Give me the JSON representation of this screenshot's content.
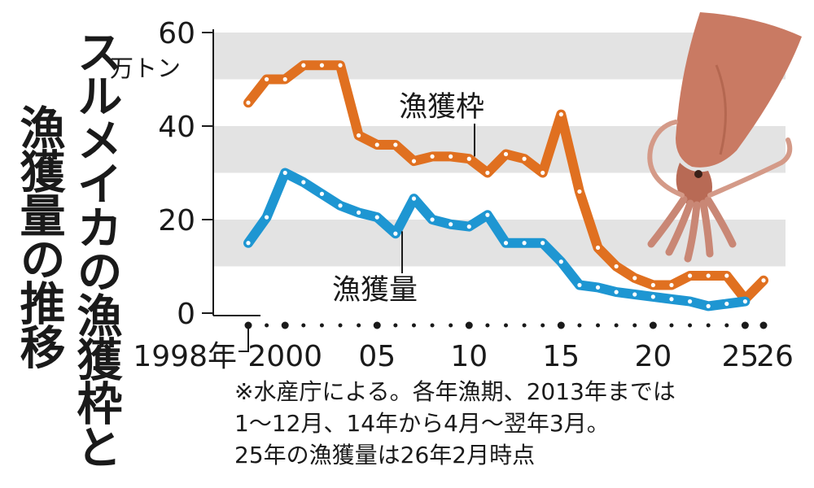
{
  "title": {
    "line1": "スルメイカの漁獲枠と",
    "line2": "漁獲量の推移"
  },
  "chart_data": {
    "type": "line",
    "title": "スルメイカの漁獲枠と漁獲量の推移",
    "ylabel": "万トン",
    "ylim": [
      0,
      60
    ],
    "yticks": [
      {
        "value": 0,
        "label": "0"
      },
      {
        "value": 20,
        "label": "20"
      },
      {
        "value": 40,
        "label": "40"
      },
      {
        "value": 60,
        "label": "60"
      }
    ],
    "xlim": [
      1998,
      2026
    ],
    "xticks": [
      {
        "value": 1998,
        "label": "1998年"
      },
      {
        "value": 2000,
        "label": "2000"
      },
      {
        "value": 2005,
        "label": "05"
      },
      {
        "value": 2010,
        "label": "10"
      },
      {
        "value": 2015,
        "label": "15"
      },
      {
        "value": 2020,
        "label": "20"
      },
      {
        "value": 2025,
        "label": "25"
      },
      {
        "value": 2026,
        "label": "26"
      }
    ],
    "grid_bands": true,
    "series": [
      {
        "name": "漁獲枠",
        "color": "#e07020",
        "x": [
          1998,
          1999,
          2000,
          2001,
          2002,
          2003,
          2004,
          2005,
          2006,
          2007,
          2008,
          2009,
          2010,
          2011,
          2012,
          2013,
          2014,
          2015,
          2016,
          2017,
          2018,
          2019,
          2020,
          2021,
          2022,
          2023,
          2024,
          2025,
          2026
        ],
        "values": [
          45,
          50,
          50,
          53,
          53,
          53,
          38,
          36,
          36,
          32.5,
          33.5,
          33.5,
          33,
          30,
          34,
          33,
          30,
          42.5,
          26,
          14,
          10,
          7.5,
          6,
          6,
          8,
          8,
          8,
          3,
          7
        ]
      },
      {
        "name": "漁獲量",
        "color": "#1e96d2",
        "x": [
          1998,
          1999,
          2000,
          2001,
          2002,
          2003,
          2004,
          2005,
          2006,
          2007,
          2008,
          2009,
          2010,
          2011,
          2012,
          2013,
          2014,
          2015,
          2016,
          2017,
          2018,
          2019,
          2020,
          2021,
          2022,
          2023,
          2024,
          2025
        ],
        "values": [
          15,
          20.5,
          30,
          28,
          25.5,
          23,
          21.5,
          20.5,
          17,
          24.5,
          20,
          19,
          18.5,
          21,
          15,
          15,
          15,
          11,
          6,
          5.5,
          4.5,
          4,
          3.5,
          3,
          2.5,
          1.5,
          2,
          2.5
        ]
      }
    ]
  },
  "notes": [
    "※水産庁による。各年漁期、2013年までは",
    "1～12月、14年から4月～翌年3月。",
    "25年の漁獲量は26年2月時点"
  ]
}
